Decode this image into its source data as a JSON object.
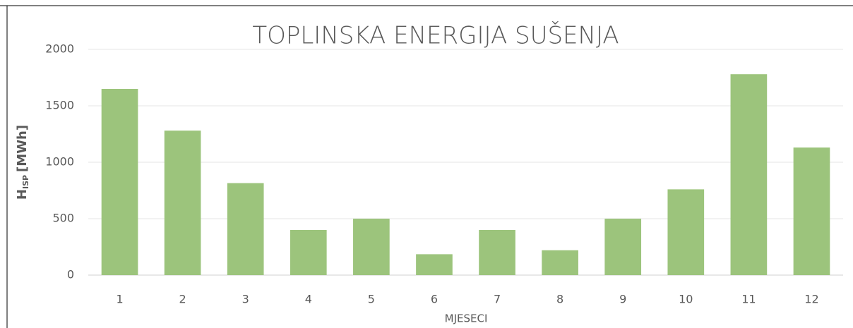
{
  "chart_data": {
    "type": "bar",
    "title": "TOPLINSKA ENERGIJA SUŠENJA",
    "xlabel": "MJESECI",
    "ylabel": {
      "main": "H",
      "sub": "ISP",
      "unit": "[MWh]"
    },
    "categories": [
      "1",
      "2",
      "3",
      "4",
      "5",
      "6",
      "7",
      "8",
      "9",
      "10",
      "11",
      "12"
    ],
    "values": [
      1650,
      1280,
      815,
      400,
      500,
      185,
      400,
      220,
      500,
      760,
      1780,
      1130
    ],
    "color": "#9cc47c",
    "ylim": [
      0,
      2000
    ],
    "yticks": [
      0,
      500,
      1000,
      1500,
      2000
    ],
    "grid": true
  }
}
